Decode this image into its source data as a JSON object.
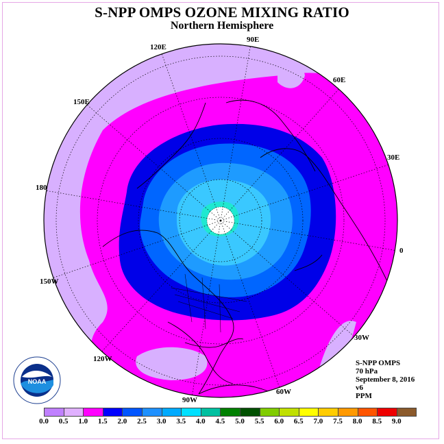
{
  "title": "S-NPP OMPS OZONE MIXING RATIO",
  "subtitle": "Northern Hemisphere",
  "longitude_labels": [
    "90E",
    "60E",
    "30E",
    "0",
    "30W",
    "60W",
    "90W",
    "120W",
    "150W",
    "180",
    "150E",
    "120E"
  ],
  "info": {
    "instrument": "S-NPP OMPS",
    "level": "70 hPa",
    "date": "September 8, 2016",
    "version": "v6",
    "units": "PPM"
  },
  "logo": {
    "name": "NOAA"
  },
  "legend": {
    "ticks": [
      "0.0",
      "0.5",
      "1.0",
      "1.5",
      "2.0",
      "2.5",
      "3.0",
      "3.5",
      "4.0",
      "4.5",
      "5.0",
      "5.5",
      "6.0",
      "6.5",
      "7.0",
      "7.5",
      "8.0",
      "8.5",
      "9.0"
    ],
    "colors": [
      "#c080ff",
      "#e0b0ff",
      "#ff00ff",
      "#0000ff",
      "#0055ff",
      "#1e90ff",
      "#00aaff",
      "#00e0ff",
      "#00c0a0",
      "#008000",
      "#005000",
      "#80cc00",
      "#c0e000",
      "#ffff00",
      "#ffcc00",
      "#ff9900",
      "#ff5500",
      "#ee0000",
      "#8b5a2b"
    ]
  },
  "colors": {
    "low": "#d8b0ff",
    "mid": "#ff00ff",
    "band_2": "#0000e8",
    "band_25": "#0066ff",
    "band_3": "#1e9bff",
    "band_35": "#3ac8ff",
    "band_4": "#20e8d0",
    "pole": "#ffffff"
  }
}
